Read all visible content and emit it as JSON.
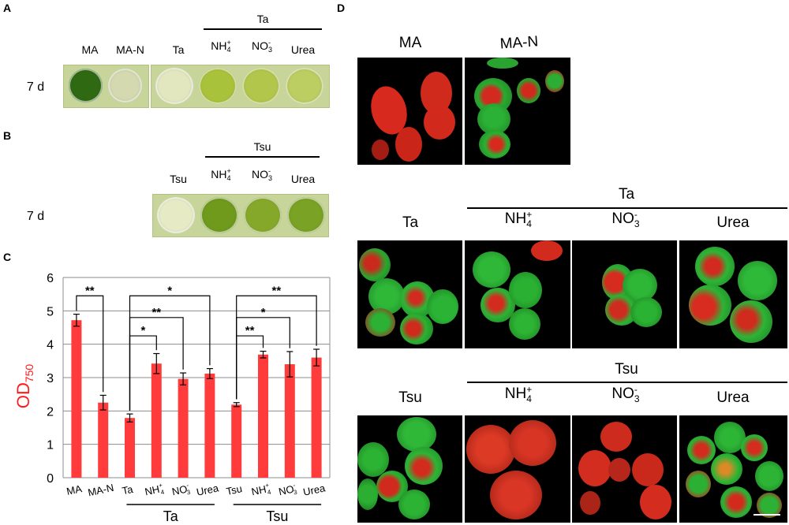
{
  "panels": {
    "A": "A",
    "B": "B",
    "C": "C",
    "D": "D"
  },
  "panelA": {
    "group_label": "Ta",
    "time_label": "7 d",
    "wells": [
      {
        "label": "MA",
        "color": "#2f6a12"
      },
      {
        "label": "MA-N",
        "color": "#d4d9b0"
      },
      {
        "label": "Ta",
        "color": "#e2e7bf"
      },
      {
        "label": "NH4+",
        "color": "#a9c23c"
      },
      {
        "label": "NO3-",
        "color": "#b2c64c"
      },
      {
        "label": "Urea",
        "color": "#bccd62"
      }
    ]
  },
  "panelB": {
    "group_label": "Tsu",
    "time_label": "7 d",
    "wells": [
      {
        "label": "Tsu",
        "color": "#e6ebc6"
      },
      {
        "label": "NH4+",
        "color": "#6f9a1c"
      },
      {
        "label": "NO3-",
        "color": "#86a82a"
      },
      {
        "label": "Urea",
        "color": "#7aa224"
      }
    ]
  },
  "ion_labels": {
    "nh4_base": "NH",
    "nh4_sub": "4",
    "nh4_sup": "+",
    "no3_base": "NO",
    "no3_sub": "3",
    "no3_sup": "-",
    "urea": "Urea"
  },
  "chart_data": {
    "type": "bar",
    "ylabel": "OD",
    "ylabel_sub": "750",
    "ylim": [
      0,
      6
    ],
    "yticks": [
      0,
      1,
      2,
      3,
      4,
      5,
      6
    ],
    "grid": true,
    "bar_color": "#ff3b3b",
    "categories": [
      "MA",
      "MA-N",
      "Ta",
      "NH4+",
      "NO3-",
      "Urea",
      "Tsu",
      "NH4+",
      "NO3-",
      "Urea"
    ],
    "values": [
      4.72,
      2.25,
      1.79,
      3.42,
      2.96,
      3.12,
      2.19,
      3.69,
      3.4,
      3.6
    ],
    "errors": [
      0.18,
      0.22,
      0.12,
      0.3,
      0.18,
      0.15,
      0.06,
      0.1,
      0.38,
      0.25
    ],
    "group_labels": [
      "Ta",
      "Tsu"
    ],
    "significance": [
      {
        "from": 0,
        "to": 1,
        "label": "**"
      },
      {
        "from": 2,
        "to": 3,
        "label": "*"
      },
      {
        "from": 2,
        "to": 4,
        "label": "**"
      },
      {
        "from": 2,
        "to": 5,
        "label": "*"
      },
      {
        "from": 6,
        "to": 7,
        "label": "**"
      },
      {
        "from": 6,
        "to": 8,
        "label": "*"
      },
      {
        "from": 6,
        "to": 9,
        "label": "**"
      }
    ]
  },
  "panelD": {
    "row1_labels": [
      "MA",
      "MA-N"
    ],
    "row2_group": "Ta",
    "row2_first": "Ta",
    "row3_group": "Tsu",
    "row3_first": "Tsu"
  }
}
